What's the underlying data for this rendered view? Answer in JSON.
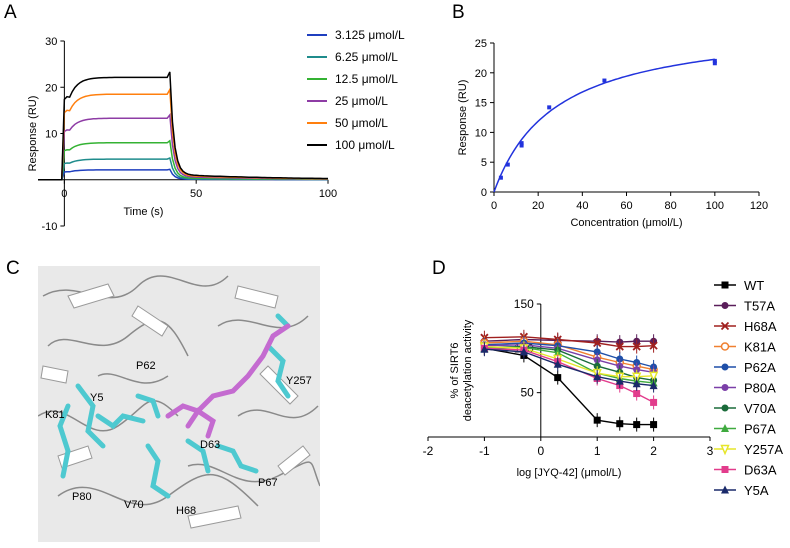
{
  "panels": {
    "a": "A",
    "b": "B",
    "c": "C",
    "d": "D"
  },
  "chart_data": [
    {
      "id": "A",
      "type": "line",
      "title": "",
      "xlabel": "Time (s)",
      "ylabel": "Response (RU)",
      "xlim": [
        -10,
        100
      ],
      "ylim": [
        -10,
        30
      ],
      "xticks": [
        "0",
        "50",
        "100"
      ],
      "yticks": [
        "-10",
        "10",
        "20",
        "30"
      ],
      "series": [
        {
          "name": "3.125 μmol/L",
          "color": "#1f3fbf",
          "plateau": 2.3
        },
        {
          "name": "6.25 μmol/L",
          "color": "#1f8c8c",
          "plateau": 4.8
        },
        {
          "name": "12.5 μmol/L",
          "color": "#34b233",
          "plateau": 8.6
        },
        {
          "name": "25 μmol/L",
          "color": "#8e3ca5",
          "plateau": 14.3
        },
        {
          "name": "50 μmol/L",
          "color": "#ff7f0e",
          "plateau": 19.9
        },
        {
          "name": "100 μmol/L",
          "color": "#000000",
          "plateau": 23.8
        }
      ]
    },
    {
      "id": "B",
      "type": "scatter",
      "title": "",
      "xlabel": "Concentration (μmol/L)",
      "ylabel": "Response (RU)",
      "xlim": [
        0,
        120
      ],
      "ylim": [
        0,
        25
      ],
      "xticks": [
        "0",
        "20",
        "40",
        "60",
        "80",
        "100",
        "120"
      ],
      "yticks": [
        "0",
        "5",
        "10",
        "15",
        "20",
        "25"
      ],
      "color": "#2233dd",
      "x": [
        3.125,
        6.25,
        12.5,
        12.5,
        25,
        50,
        100,
        100
      ],
      "y": [
        2.4,
        4.6,
        7.8,
        8.2,
        14.2,
        18.7,
        21.6,
        22.0
      ],
      "fit": {
        "Bmax": 28.5,
        "Kd": 28.0
      }
    },
    {
      "id": "D",
      "type": "line",
      "title": "",
      "xlabel": "log [JYQ-42] (μmol/L)",
      "ylabel_line1": "% of SIRT6",
      "ylabel_line2": "deacetylation activity",
      "xlim": [
        -2,
        3
      ],
      "ylim": [
        0,
        150
      ],
      "xticks": [
        "-2",
        "-1",
        "0",
        "1",
        "2",
        "3"
      ],
      "yticks": [
        "50",
        "100",
        "150"
      ],
      "x": [
        -1,
        -0.3,
        0.3,
        1,
        1.4,
        1.7,
        2
      ],
      "series": [
        {
          "name": "WT",
          "color": "#000000",
          "marker": "square",
          "values": [
            100,
            92,
            67,
            19,
            15,
            14,
            14
          ]
        },
        {
          "name": "T57A",
          "color": "#5a1e5a",
          "marker": "circle",
          "values": [
            108,
            110,
            109,
            108,
            107,
            108,
            108
          ]
        },
        {
          "name": "H68A",
          "color": "#a0201f",
          "marker": "x",
          "values": [
            112,
            113,
            110,
            106,
            102,
            102,
            103
          ]
        },
        {
          "name": "K81A",
          "color": "#f08030",
          "marker": "circle-open",
          "values": [
            106,
            108,
            104,
            90,
            84,
            80,
            76
          ]
        },
        {
          "name": "P62A",
          "color": "#1f4fa8",
          "marker": "circle",
          "values": [
            104,
            106,
            103,
            96,
            88,
            84,
            79
          ]
        },
        {
          "name": "P80A",
          "color": "#7b3fa8",
          "marker": "circle",
          "values": [
            103,
            104,
            100,
            87,
            80,
            76,
            73
          ]
        },
        {
          "name": "V70A",
          "color": "#1a6b3a",
          "marker": "circle",
          "values": [
            101,
            102,
            98,
            80,
            73,
            67,
            64
          ]
        },
        {
          "name": "P67A",
          "color": "#3faa3f",
          "marker": "triangle",
          "values": [
            100,
            101,
            95,
            72,
            66,
            63,
            61
          ]
        },
        {
          "name": "Y257A",
          "color": "#e6e62a",
          "marker": "triangle-down-open",
          "values": [
            102,
            100,
            88,
            72,
            68,
            68,
            69
          ]
        },
        {
          "name": "D63A",
          "color": "#e23c8c",
          "marker": "square",
          "values": [
            100,
            98,
            85,
            66,
            58,
            49,
            39
          ]
        },
        {
          "name": "Y5A",
          "color": "#1a2a6a",
          "marker": "triangle",
          "values": [
            99,
            96,
            82,
            68,
            63,
            60,
            58
          ]
        }
      ]
    }
  ],
  "structure_labels": [
    "Y5",
    "P62",
    "K81",
    "D63",
    "Y257",
    "P80",
    "V70",
    "H68",
    "P67"
  ]
}
